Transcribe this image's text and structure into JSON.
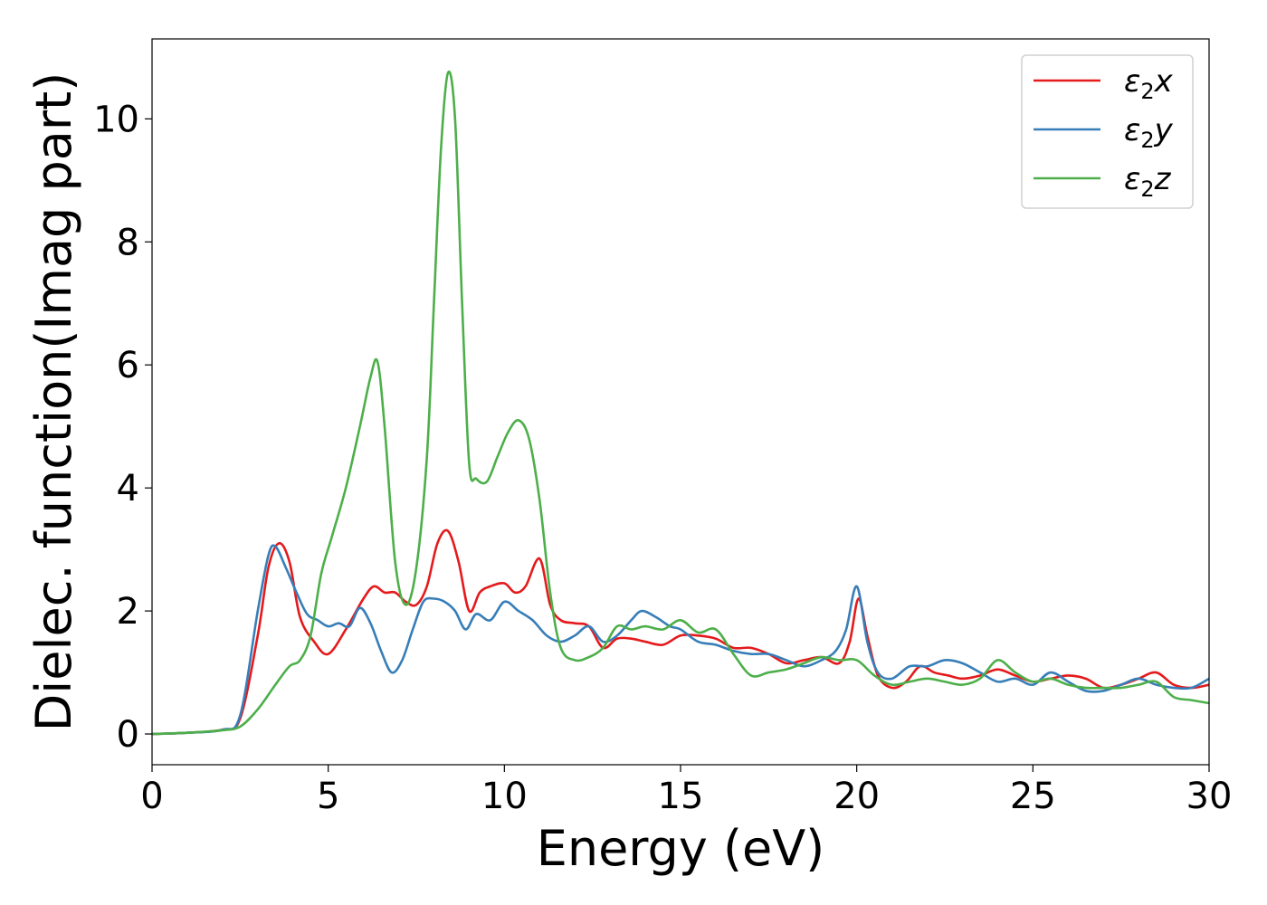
{
  "chart_data": {
    "type": "line",
    "title": "",
    "xlabel": "Energy (eV)",
    "ylabel": "Dielec. function(Imag part)",
    "xlim": [
      0,
      30
    ],
    "ylim": [
      -0.5,
      11.3
    ],
    "xticks": [
      0,
      5,
      10,
      15,
      20,
      25,
      30
    ],
    "yticks": [
      0,
      2,
      4,
      6,
      8,
      10
    ],
    "grid": false,
    "legend_position": "top-right",
    "series": [
      {
        "name": "ε2x",
        "legend_base": "ε",
        "legend_sub": "2",
        "legend_suffix": "x",
        "color": "#e41a1c",
        "x": [
          0,
          1,
          2,
          2.5,
          3,
          3.3,
          3.6,
          3.9,
          4.2,
          4.6,
          5,
          5.5,
          6,
          6.3,
          6.6,
          6.9,
          7.2,
          7.5,
          7.8,
          8.1,
          8.4,
          8.7,
          9,
          9.3,
          9.6,
          10,
          10.3,
          10.6,
          11,
          11.3,
          11.6,
          12,
          12.4,
          12.8,
          13.2,
          13.6,
          14,
          14.5,
          15,
          15.5,
          16,
          16.5,
          17,
          17.5,
          18,
          18.5,
          19,
          19.5,
          19.8,
          20.05,
          20.3,
          20.6,
          21,
          21.4,
          21.8,
          22.2,
          22.6,
          23,
          23.5,
          24,
          24.5,
          25,
          25.5,
          26,
          26.5,
          27,
          27.5,
          28,
          28.5,
          29,
          29.5,
          30
        ],
        "y": [
          0,
          0.02,
          0.07,
          0.25,
          1.6,
          2.7,
          3.1,
          2.8,
          1.9,
          1.5,
          1.3,
          1.7,
          2.2,
          2.4,
          2.3,
          2.3,
          2.15,
          2.1,
          2.4,
          3.1,
          3.3,
          2.8,
          2.0,
          2.3,
          2.4,
          2.45,
          2.3,
          2.4,
          2.85,
          2.1,
          1.85,
          1.8,
          1.75,
          1.4,
          1.55,
          1.55,
          1.5,
          1.45,
          1.6,
          1.6,
          1.55,
          1.4,
          1.4,
          1.3,
          1.15,
          1.2,
          1.25,
          1.15,
          1.5,
          2.2,
          1.6,
          0.95,
          0.75,
          0.85,
          1.1,
          1.0,
          0.95,
          0.9,
          0.95,
          1.05,
          0.95,
          0.85,
          0.9,
          0.95,
          0.9,
          0.75,
          0.8,
          0.9,
          1.0,
          0.8,
          0.75,
          0.8
        ]
      },
      {
        "name": "ε2y",
        "legend_base": "ε",
        "legend_sub": "2",
        "legend_suffix": "y",
        "color": "#377eb8",
        "x": [
          0,
          1,
          2,
          2.5,
          3,
          3.3,
          3.5,
          3.8,
          4.1,
          4.4,
          4.7,
          5,
          5.3,
          5.6,
          5.9,
          6.2,
          6.5,
          6.8,
          7.1,
          7.4,
          7.7,
          8,
          8.3,
          8.6,
          8.9,
          9.2,
          9.6,
          10,
          10.4,
          10.8,
          11.2,
          11.6,
          12,
          12.4,
          12.8,
          13.2,
          13.6,
          13.9,
          14.3,
          14.7,
          15,
          15.5,
          16,
          16.5,
          17,
          17.5,
          18,
          18.5,
          19,
          19.4,
          19.7,
          20,
          20.3,
          20.6,
          21,
          21.5,
          22,
          22.5,
          23,
          23.5,
          24,
          24.5,
          25,
          25.5,
          26,
          26.5,
          27,
          27.5,
          28,
          28.5,
          29,
          29.5,
          30
        ],
        "y": [
          0,
          0.02,
          0.07,
          0.3,
          2.0,
          2.9,
          3.05,
          2.7,
          2.3,
          1.95,
          1.85,
          1.75,
          1.8,
          1.75,
          2.05,
          1.8,
          1.35,
          1.0,
          1.2,
          1.7,
          2.15,
          2.2,
          2.15,
          2.0,
          1.7,
          1.95,
          1.85,
          2.15,
          2.0,
          1.85,
          1.6,
          1.5,
          1.6,
          1.75,
          1.5,
          1.6,
          1.85,
          2.0,
          1.9,
          1.75,
          1.7,
          1.5,
          1.45,
          1.35,
          1.3,
          1.3,
          1.2,
          1.1,
          1.2,
          1.35,
          1.7,
          2.4,
          1.5,
          1.0,
          0.9,
          1.1,
          1.1,
          1.2,
          1.15,
          1.0,
          0.85,
          0.9,
          0.8,
          1.0,
          0.85,
          0.7,
          0.7,
          0.8,
          0.9,
          0.8,
          0.75,
          0.75,
          0.9
        ]
      },
      {
        "name": "ε2z",
        "legend_base": "ε",
        "legend_sub": "2",
        "legend_suffix": "z",
        "color": "#4daf4a",
        "x": [
          0,
          1,
          2,
          2.5,
          3,
          3.5,
          3.9,
          4.2,
          4.5,
          4.8,
          5.1,
          5.5,
          5.9,
          6.2,
          6.4,
          6.6,
          6.9,
          7.2,
          7.5,
          7.8,
          8.0,
          8.2,
          8.4,
          8.6,
          8.8,
          9.0,
          9.2,
          9.5,
          9.8,
          10.1,
          10.4,
          10.7,
          11.0,
          11.3,
          11.6,
          12,
          12.4,
          12.8,
          13.2,
          13.6,
          14,
          14.5,
          15,
          15.5,
          16,
          16.5,
          17,
          17.5,
          18,
          18.5,
          19,
          19.5,
          20,
          20.5,
          21,
          21.5,
          22,
          22.5,
          23,
          23.5,
          24,
          24.5,
          25,
          25.5,
          26,
          26.5,
          27,
          27.5,
          28,
          28.5,
          29,
          29.5,
          30
        ],
        "y": [
          0,
          0.02,
          0.06,
          0.12,
          0.4,
          0.8,
          1.1,
          1.2,
          1.6,
          2.6,
          3.2,
          4.0,
          5.0,
          5.8,
          6.05,
          5.0,
          2.8,
          2.1,
          2.7,
          4.5,
          7.0,
          9.5,
          10.75,
          10.0,
          7.0,
          4.4,
          4.15,
          4.1,
          4.5,
          4.9,
          5.1,
          4.8,
          3.8,
          2.3,
          1.4,
          1.2,
          1.25,
          1.4,
          1.75,
          1.7,
          1.75,
          1.7,
          1.85,
          1.65,
          1.7,
          1.3,
          0.95,
          1.0,
          1.05,
          1.15,
          1.25,
          1.2,
          1.2,
          0.95,
          0.8,
          0.85,
          0.9,
          0.85,
          0.8,
          0.9,
          1.2,
          1.0,
          0.85,
          0.9,
          0.8,
          0.75,
          0.75,
          0.75,
          0.8,
          0.85,
          0.6,
          0.55,
          0.5
        ]
      }
    ]
  }
}
